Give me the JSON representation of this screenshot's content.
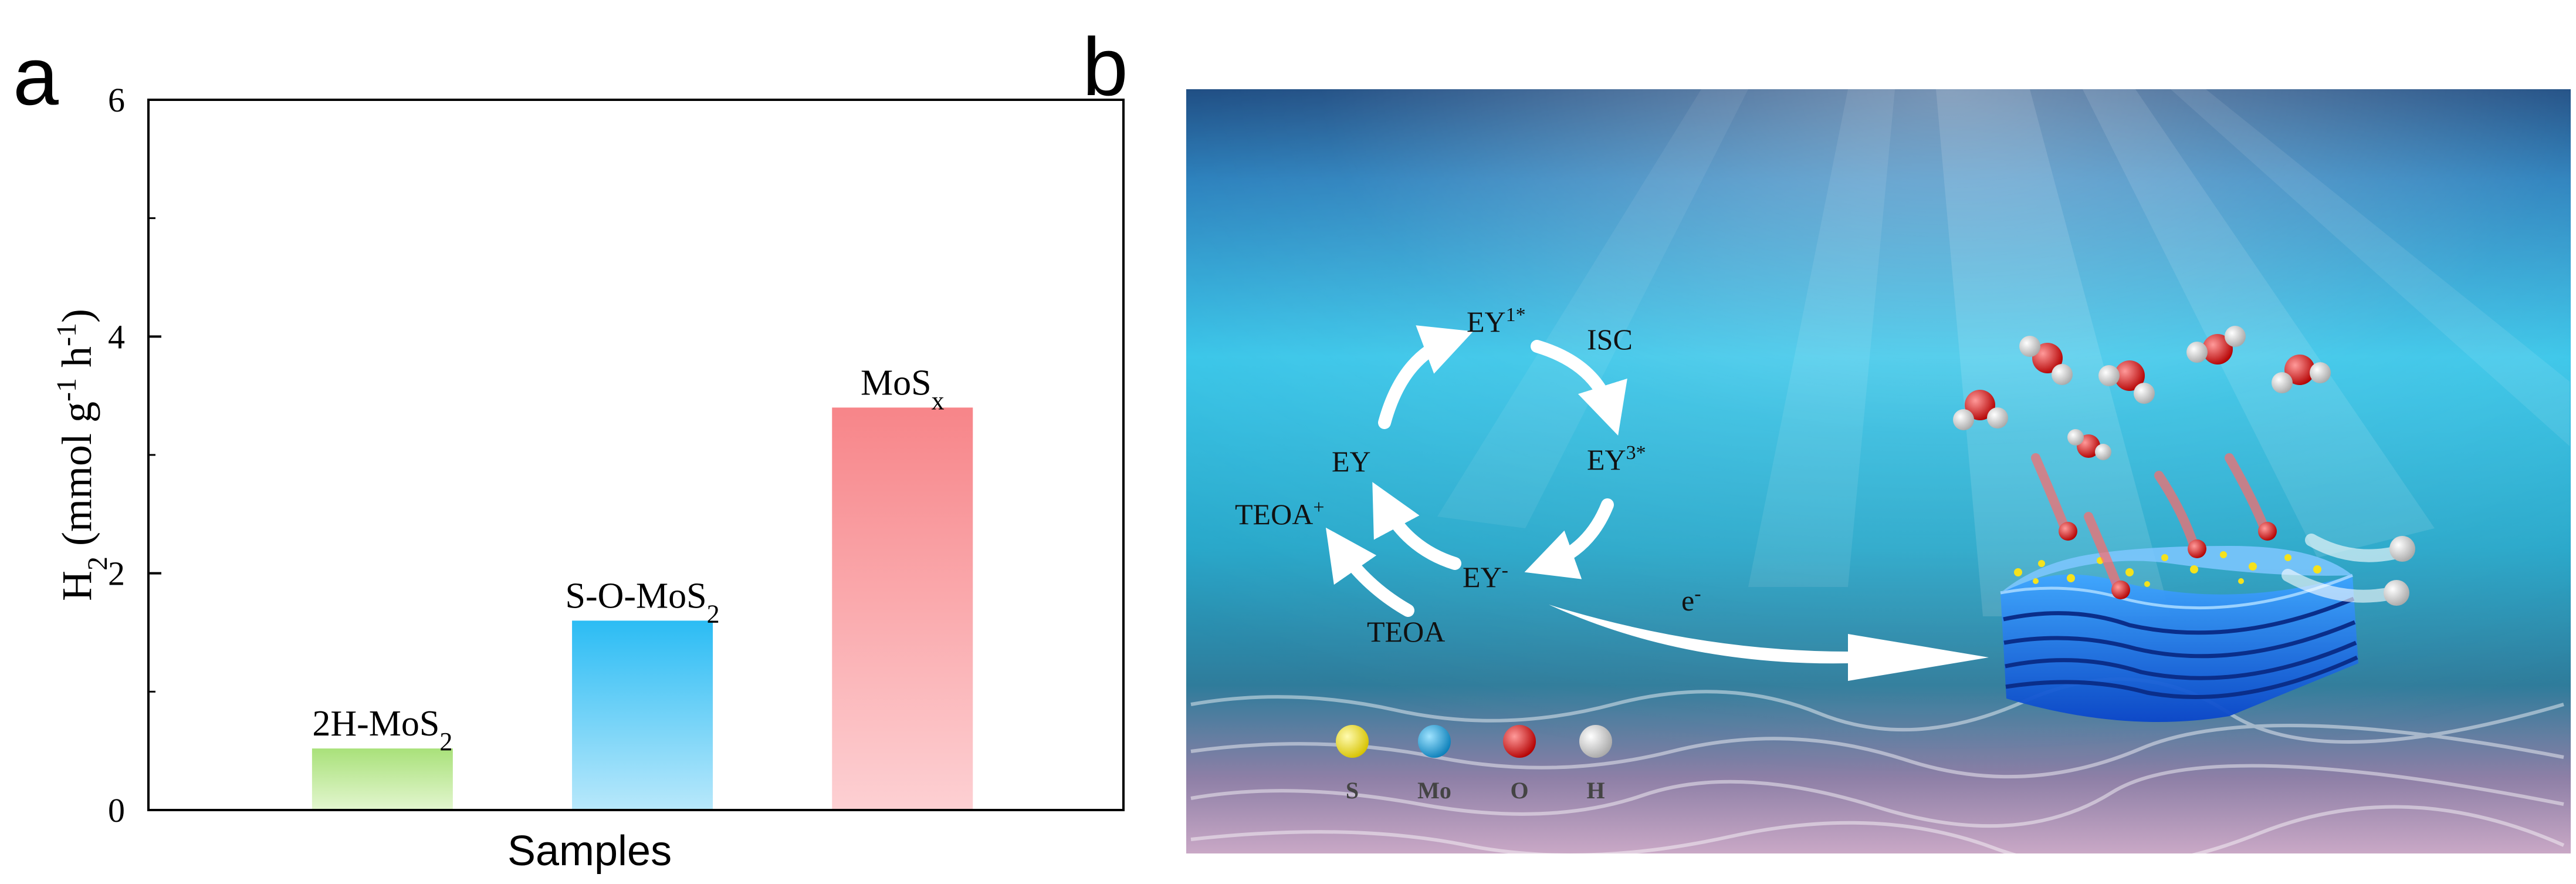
{
  "panel_a": {
    "letter": "a",
    "chart_data": {
      "type": "bar",
      "categories": [
        "2H-MoS2",
        "S-O-MoS2",
        "MoSx"
      ],
      "category_labels": [
        {
          "main": "2H-MoS",
          "sub": "2"
        },
        {
          "main": "S-O-MoS",
          "sub": "2"
        },
        {
          "main": "MoS",
          "sub": "x"
        }
      ],
      "values": [
        0.52,
        1.6,
        3.4
      ],
      "colors": [
        "#b5e68a",
        "#3ec3f5",
        "#f88d91"
      ],
      "xlabel": "Samples",
      "ylabel_parts": {
        "a": "H",
        "a_sub": "2",
        "b": " (mmol g",
        "b_sup": "-1",
        "c": " h",
        "c_sup": "-1",
        "d": ")"
      },
      "ylim": [
        0,
        6
      ],
      "yticks": [
        "0",
        "2",
        "4",
        "6"
      ],
      "grid": false
    }
  },
  "panel_b": {
    "letter": "b",
    "cycle": {
      "ey1": {
        "main": "EY",
        "sup": "1*"
      },
      "isc": "ISC",
      "ey3": {
        "main": "EY",
        "sup": "3*"
      },
      "ey": "EY",
      "ey_minus": {
        "main": "EY",
        "sup": "-"
      },
      "teoa_plus": {
        "main": "TEOA",
        "sup": "+"
      },
      "teoa": "TEOA",
      "electron": {
        "main": "e",
        "sup": "-"
      }
    },
    "legend": [
      {
        "label": "S",
        "color": "#f2e21a"
      },
      {
        "label": "Mo",
        "color": "#1fa6df"
      },
      {
        "label": "O",
        "color": "#e01818"
      },
      {
        "label": "H",
        "color": "#e6e6e6"
      }
    ]
  }
}
